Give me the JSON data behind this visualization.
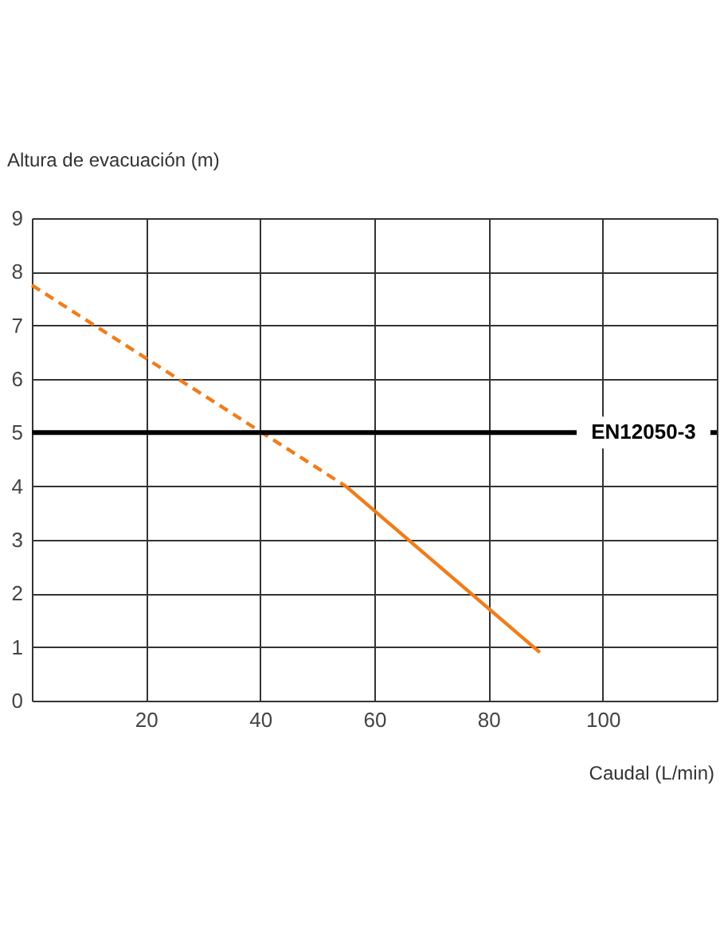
{
  "chart_data": {
    "type": "line",
    "xlabel": "Caudal (L/min)",
    "ylabel": "Altura de evacuación (m)",
    "series": [
      {
        "color": "#f07d1a",
        "line_style": "dashed",
        "x": [
          0,
          55
        ],
        "values": [
          7.75,
          4.0
        ]
      },
      {
        "color": "#f07d1a",
        "line_style": "solid",
        "x": [
          55,
          89
        ],
        "values": [
          4.0,
          0.9
        ]
      }
    ],
    "xlim": [
      0,
      120
    ],
    "xticks": [
      {
        "value": 0,
        "label": null
      },
      20,
      40,
      60,
      80,
      100,
      {
        "value": 120,
        "label": null
      }
    ],
    "ylim": [
      0,
      9
    ],
    "yticks": [
      0,
      1,
      2,
      3,
      4,
      5,
      6,
      7,
      8,
      9
    ],
    "ref_lines": [
      {
        "axis": "y",
        "value": 5,
        "label": "EN12050-3",
        "color": "#000000"
      }
    ],
    "grid": true
  }
}
